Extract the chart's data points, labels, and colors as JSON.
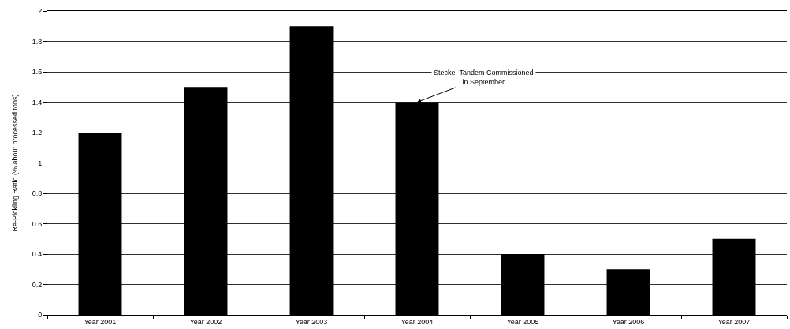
{
  "chart_data": {
    "type": "bar",
    "ylabel": "Re-Pickling Ratio (% about processed tons)",
    "categories": [
      "Year 2001",
      "Year 2002",
      "Year 2003",
      "Year 2004",
      "Year 2005",
      "Year 2006",
      "Year 2007"
    ],
    "values": [
      1.2,
      1.5,
      1.9,
      1.4,
      0.4,
      0.3,
      0.5
    ],
    "color": "#000000",
    "ylim": [
      0,
      2
    ],
    "yticks": [
      0,
      0.2,
      0.4,
      0.6,
      0.8,
      1,
      1.2,
      1.4,
      1.6,
      1.8,
      2
    ],
    "grid": "y",
    "annotations": [
      {
        "text": "Steckel-Tandem Commissioned\nin September",
        "x": "Year 2004",
        "y": 1.4
      }
    ]
  }
}
